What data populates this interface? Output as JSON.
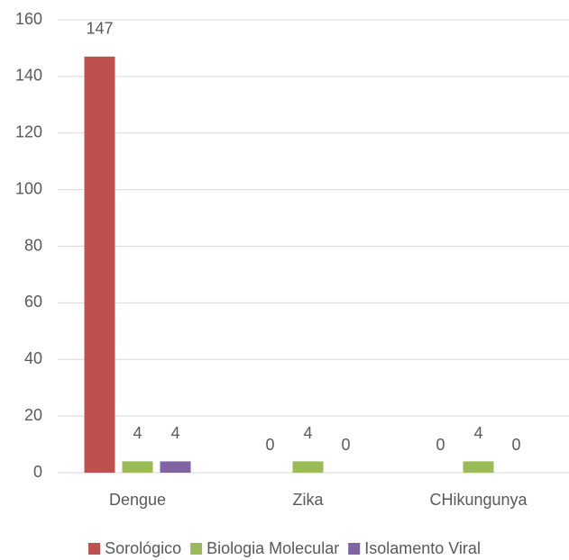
{
  "chart_data": {
    "type": "bar",
    "categories": [
      "Dengue",
      "Zika",
      "CHikungunya"
    ],
    "series": [
      {
        "name": "Sorológico",
        "color": "#c0504d",
        "values": [
          147,
          0,
          0
        ]
      },
      {
        "name": "Biologia Molecular",
        "color": "#9bbb59",
        "values": [
          4,
          4,
          4
        ]
      },
      {
        "name": "Isolamento Viral",
        "color": "#8064a2",
        "values": [
          4,
          0,
          0
        ]
      }
    ],
    "ylim": [
      0,
      160
    ],
    "yticks": [
      0,
      20,
      40,
      60,
      80,
      100,
      120,
      140,
      160
    ],
    "grid": true,
    "legend": "bottom",
    "data_labels": true
  }
}
